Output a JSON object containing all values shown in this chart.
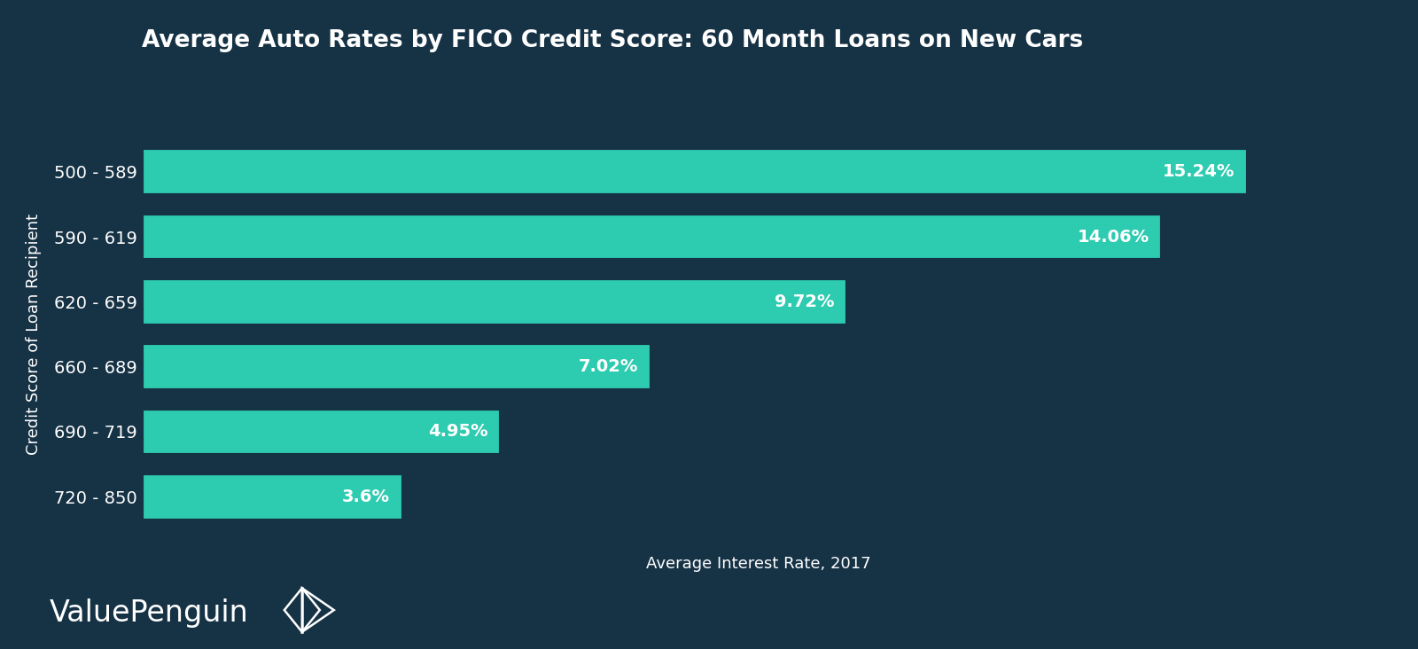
{
  "title": "Average Auto Rates by FICO Credit Score: 60 Month Loans on New Cars",
  "xlabel": "Average Interest Rate, 2017",
  "ylabel": "Credit Score of Loan Recipient",
  "categories": [
    "500 - 589",
    "590 - 619",
    "620 - 659",
    "660 - 689",
    "690 - 719",
    "720 - 850"
  ],
  "values": [
    15.24,
    14.06,
    9.72,
    7.02,
    4.95,
    3.6
  ],
  "labels": [
    "15.24%",
    "14.06%",
    "9.72%",
    "7.02%",
    "4.95%",
    "3.6%"
  ],
  "bar_color": "#2dcbb0",
  "background_color": "#163245",
  "text_color": "#ffffff",
  "title_fontsize": 19,
  "ylabel_fontsize": 13,
  "tick_fontsize": 14,
  "bar_label_fontsize": 14,
  "xlabel_fontsize": 13,
  "xlim": [
    0,
    17
  ],
  "bar_height": 0.72,
  "watermark_text": "ValuePenguin",
  "watermark_fontsize": 24
}
